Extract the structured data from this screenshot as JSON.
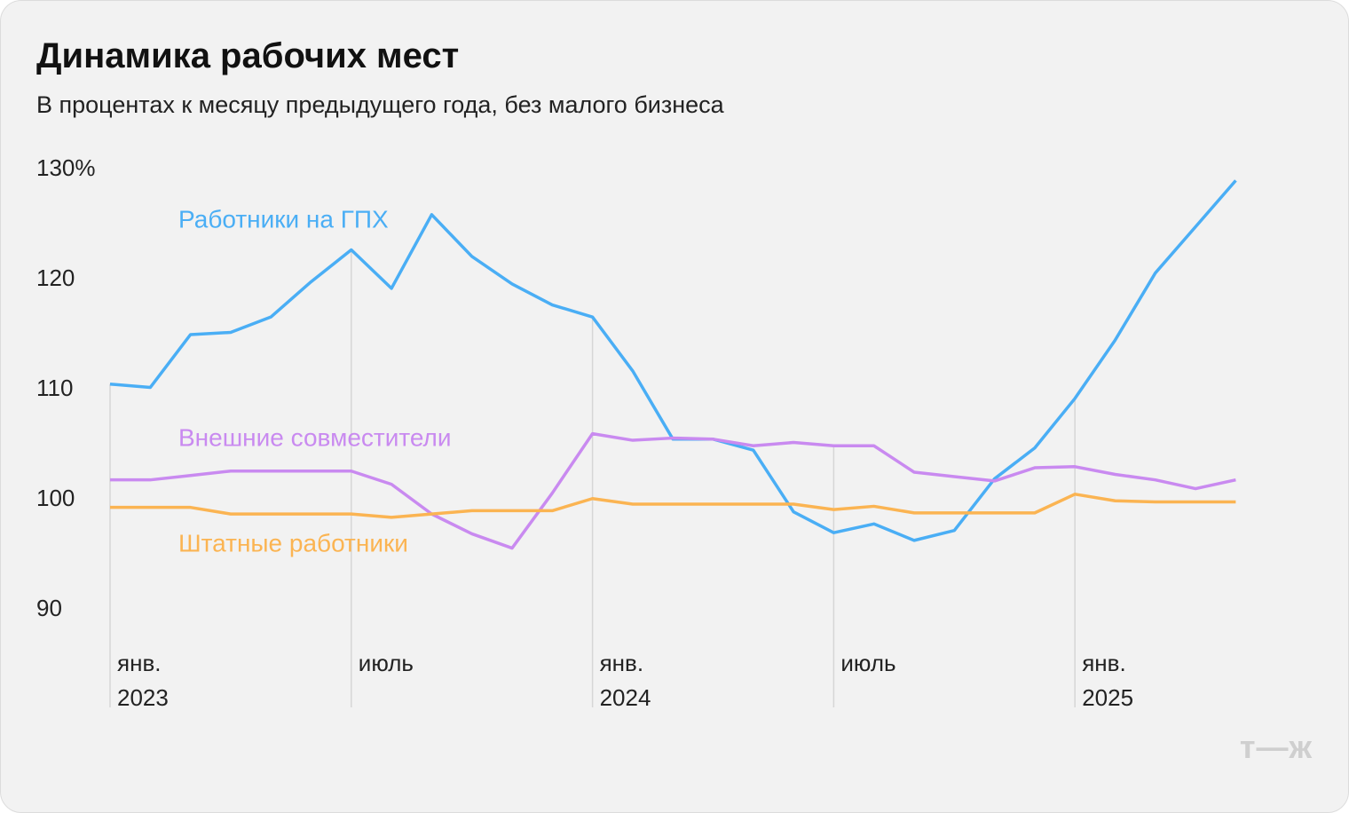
{
  "chart_data": {
    "type": "line",
    "title": "Динамика рабочих мест",
    "subtitle": "В процентах к месяцу предыдущего года, без малого бизнеса",
    "logo": "т—ж",
    "categories": [
      "янв. 2023",
      null,
      null,
      null,
      null,
      null,
      "июль",
      null,
      null,
      null,
      null,
      null,
      "янв. 2024",
      null,
      null,
      null,
      null,
      null,
      "июль",
      null,
      null,
      null,
      null,
      null,
      "янв. 2025",
      null,
      null,
      null,
      null
    ],
    "series": [
      {
        "name": "Работники на ГПХ",
        "color": "#4aaef5",
        "values": [
          110.5,
          110.2,
          115.0,
          115.2,
          116.6,
          119.8,
          122.7,
          119.2,
          125.9,
          122.1,
          119.6,
          117.7,
          116.6,
          111.7,
          105.5,
          105.5,
          104.5,
          98.9,
          97.0,
          97.8,
          96.3,
          97.2,
          101.9,
          104.7,
          109.2,
          114.5,
          120.6,
          124.8,
          129.0
        ]
      },
      {
        "name": "Внешние совместители",
        "color": "#c98af0",
        "values": [
          101.8,
          101.8,
          102.2,
          102.6,
          102.6,
          102.6,
          102.6,
          101.4,
          98.7,
          96.9,
          95.6,
          100.6,
          106.0,
          105.4,
          105.6,
          105.5,
          104.9,
          105.2,
          104.9,
          104.9,
          102.5,
          102.1,
          101.7,
          102.9,
          103.0,
          102.3,
          101.8,
          101.0,
          101.8
        ]
      },
      {
        "name": "Штатные работники",
        "color": "#fbb452",
        "values": [
          99.3,
          99.3,
          99.3,
          98.7,
          98.7,
          98.7,
          98.7,
          98.4,
          98.7,
          99.0,
          99.0,
          99.0,
          100.1,
          99.6,
          99.6,
          99.6,
          99.6,
          99.6,
          99.1,
          99.4,
          98.8,
          98.8,
          98.8,
          98.8,
          100.5,
          99.9,
          99.8,
          99.8,
          99.8
        ]
      }
    ],
    "ylim": [
      90,
      130
    ],
    "yticks": [
      90,
      100,
      110,
      120,
      {
        "value": 130,
        "label": "130%"
      }
    ],
    "grid": false
  }
}
